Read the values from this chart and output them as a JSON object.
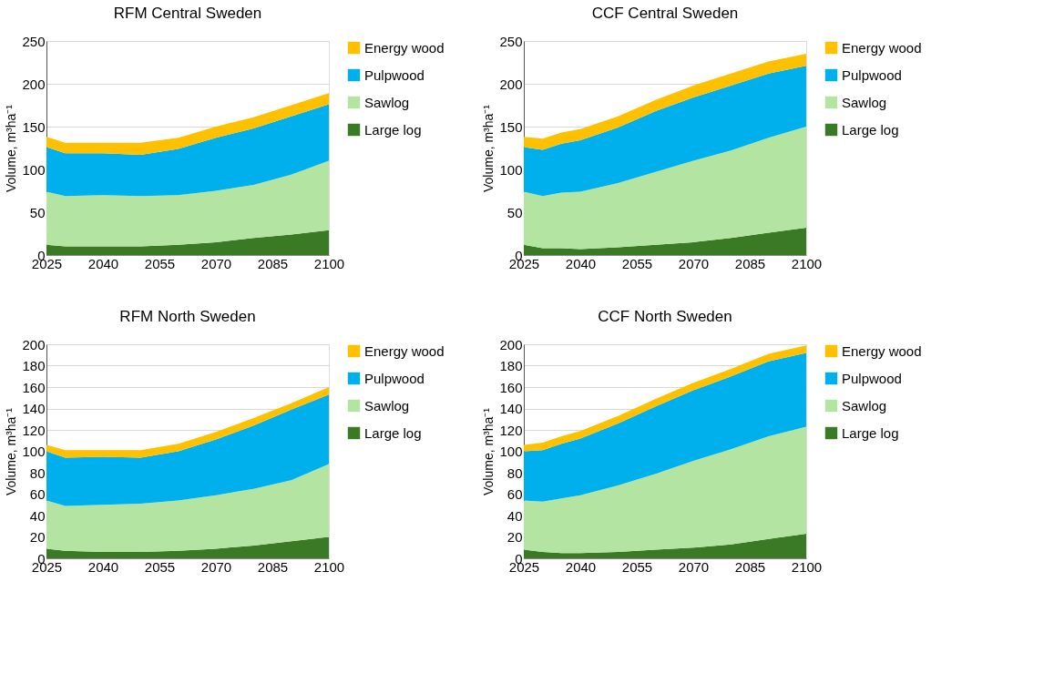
{
  "chart_data": [
    {
      "type": "area",
      "title": "RFM Central Sweden",
      "ylabel": "Volume, m³ha⁻¹",
      "stacked": true,
      "grid": "y",
      "legend": "right",
      "x": [
        2025,
        2030,
        2040,
        2050,
        2060,
        2070,
        2080,
        2090,
        2100
      ],
      "xlim": [
        2025,
        2100
      ],
      "xticks": [
        2025,
        2040,
        2055,
        2070,
        2085,
        2100
      ],
      "ylim": [
        0,
        250
      ],
      "yticks": [
        0,
        50,
        100,
        150,
        200,
        250
      ],
      "series": [
        {
          "name": "Large log",
          "color": "#3b7a24",
          "values": [
            12,
            10,
            10,
            10,
            12,
            15,
            20,
            24,
            29
          ]
        },
        {
          "name": "Sawlog",
          "color": "#b4e4a2",
          "values": [
            62,
            59,
            60,
            59,
            58,
            60,
            62,
            70,
            81
          ]
        },
        {
          "name": "Pulpwood",
          "color": "#00b0ed",
          "values": [
            52,
            50,
            49,
            48,
            54,
            62,
            66,
            68,
            66
          ]
        },
        {
          "name": "Energy wood",
          "color": "#ffc000",
          "values": [
            12,
            12,
            12,
            14,
            13,
            13,
            13,
            13,
            13
          ]
        }
      ]
    },
    {
      "type": "area",
      "title": "CCF Central Sweden",
      "ylabel": "Volume, m³ha⁻¹",
      "stacked": true,
      "grid": "y",
      "legend": "right",
      "x": [
        2025,
        2030,
        2035,
        2040,
        2050,
        2060,
        2070,
        2080,
        2090,
        2100
      ],
      "xlim": [
        2025,
        2100
      ],
      "xticks": [
        2025,
        2040,
        2055,
        2070,
        2085,
        2100
      ],
      "ylim": [
        0,
        250
      ],
      "yticks": [
        0,
        50,
        100,
        150,
        200,
        250
      ],
      "series": [
        {
          "name": "Large log",
          "color": "#3b7a24",
          "values": [
            12,
            8,
            8,
            7,
            9,
            12,
            15,
            20,
            26,
            32
          ]
        },
        {
          "name": "Sawlog",
          "color": "#b4e4a2",
          "values": [
            62,
            61,
            65,
            67,
            75,
            85,
            95,
            102,
            111,
            118
          ]
        },
        {
          "name": "Pulpwood",
          "color": "#00b0ed",
          "values": [
            52,
            54,
            57,
            60,
            65,
            71,
            74,
            76,
            75,
            71
          ]
        },
        {
          "name": "Energy wood",
          "color": "#ffc000",
          "values": [
            12,
            13,
            13,
            13,
            13,
            13,
            14,
            14,
            14,
            14
          ]
        }
      ]
    },
    {
      "type": "area",
      "title": "RFM North Sweden",
      "ylabel": "Volume, m³ha⁻¹",
      "stacked": true,
      "grid": "y",
      "legend": "right",
      "x": [
        2025,
        2030,
        2040,
        2050,
        2060,
        2070,
        2080,
        2090,
        2100
      ],
      "xlim": [
        2025,
        2100
      ],
      "xticks": [
        2025,
        2040,
        2055,
        2070,
        2085,
        2100
      ],
      "ylim": [
        0,
        200
      ],
      "yticks": [
        0,
        20,
        40,
        60,
        80,
        100,
        120,
        140,
        160,
        180,
        200
      ],
      "series": [
        {
          "name": "Large log",
          "color": "#3b7a24",
          "values": [
            9,
            7,
            6,
            6,
            7,
            9,
            12,
            16,
            20
          ]
        },
        {
          "name": "Sawlog",
          "color": "#b4e4a2",
          "values": [
            45,
            42,
            44,
            45,
            47,
            50,
            53,
            57,
            68
          ]
        },
        {
          "name": "Pulpwood",
          "color": "#00b0ed",
          "values": [
            46,
            45,
            45,
            43,
            46,
            52,
            59,
            66,
            65
          ]
        },
        {
          "name": "Energy wood",
          "color": "#ffc000",
          "values": [
            6,
            7,
            6,
            7,
            7,
            7,
            7,
            6,
            7
          ]
        }
      ]
    },
    {
      "type": "area",
      "title": "CCF North Sweden",
      "ylabel": "Volume, m³ha⁻¹",
      "stacked": true,
      "grid": "y",
      "legend": "right",
      "x": [
        2025,
        2030,
        2035,
        2040,
        2050,
        2060,
        2070,
        2080,
        2090,
        2100
      ],
      "xlim": [
        2025,
        2100
      ],
      "xticks": [
        2025,
        2040,
        2055,
        2070,
        2085,
        2100
      ],
      "ylim": [
        0,
        200
      ],
      "yticks": [
        0,
        20,
        40,
        60,
        80,
        100,
        120,
        140,
        160,
        180,
        200
      ],
      "series": [
        {
          "name": "Large log",
          "color": "#3b7a24",
          "values": [
            8,
            6,
            5,
            5,
            6,
            8,
            10,
            13,
            18,
            23
          ]
        },
        {
          "name": "Sawlog",
          "color": "#b4e4a2",
          "values": [
            46,
            47,
            51,
            54,
            62,
            71,
            81,
            89,
            96,
            100
          ]
        },
        {
          "name": "Pulpwood",
          "color": "#00b0ed",
          "values": [
            46,
            48,
            51,
            53,
            58,
            63,
            66,
            68,
            70,
            69
          ]
        },
        {
          "name": "Energy wood",
          "color": "#ffc000",
          "values": [
            6,
            7,
            7,
            7,
            7,
            7,
            7,
            7,
            7,
            7
          ]
        }
      ]
    }
  ]
}
